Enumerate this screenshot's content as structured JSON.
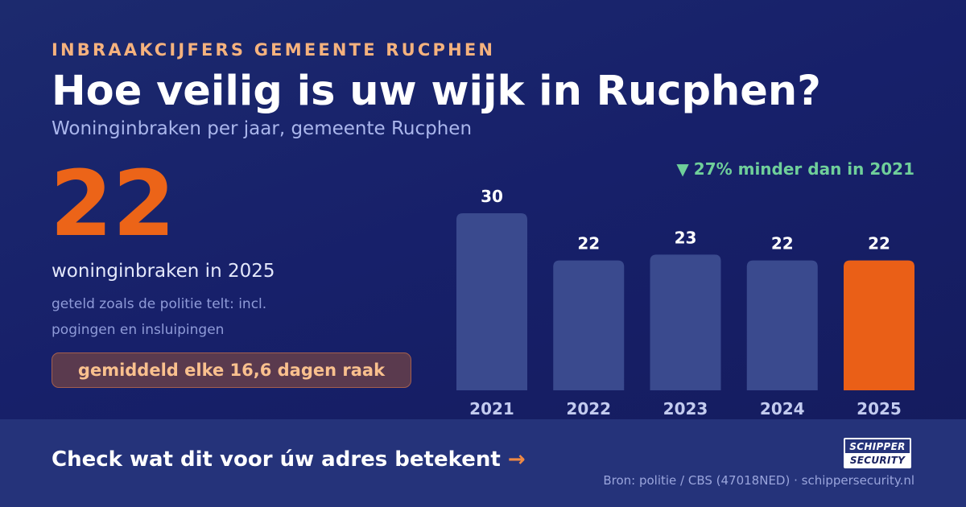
{
  "header": {
    "eyebrow": "INBRAAKCIJFERS GEMEENTE RUCPHEN",
    "title": "Hoe veilig is uw wijk in Rucphen?",
    "subtitle": "Woninginbraken per jaar, gemeente Rucphen"
  },
  "highlight": {
    "value": "22",
    "label": "woninginbraken in 2025",
    "note": "geteld zoals de politie telt: incl. pogingen en insluipingen",
    "pill": "gemiddeld elke 16,6 dagen raak"
  },
  "trend": {
    "arrow": "▼",
    "text": "27% minder dan in 2021",
    "color": "#6fcf9a"
  },
  "chart_data": {
    "type": "bar",
    "categories": [
      "2021",
      "2022",
      "2023",
      "2024",
      "2025"
    ],
    "values": [
      30,
      22,
      23,
      22,
      22
    ],
    "ylim": [
      0,
      30
    ],
    "grid": false,
    "highlight_index": 4,
    "colors": {
      "bar": "#3a4a8e",
      "highlight": "#ea5f17",
      "value_label": "#ffffff",
      "tick_label": "#c3cbef"
    }
  },
  "footer": {
    "cta": "Check wat dit voor úw adres betekent",
    "cta_arrow": "→",
    "logo_line1": "SCHIPPER",
    "logo_line2": "SECURITY",
    "source": "Bron: politie / CBS (47018NED) · schippersecurity.nl"
  }
}
